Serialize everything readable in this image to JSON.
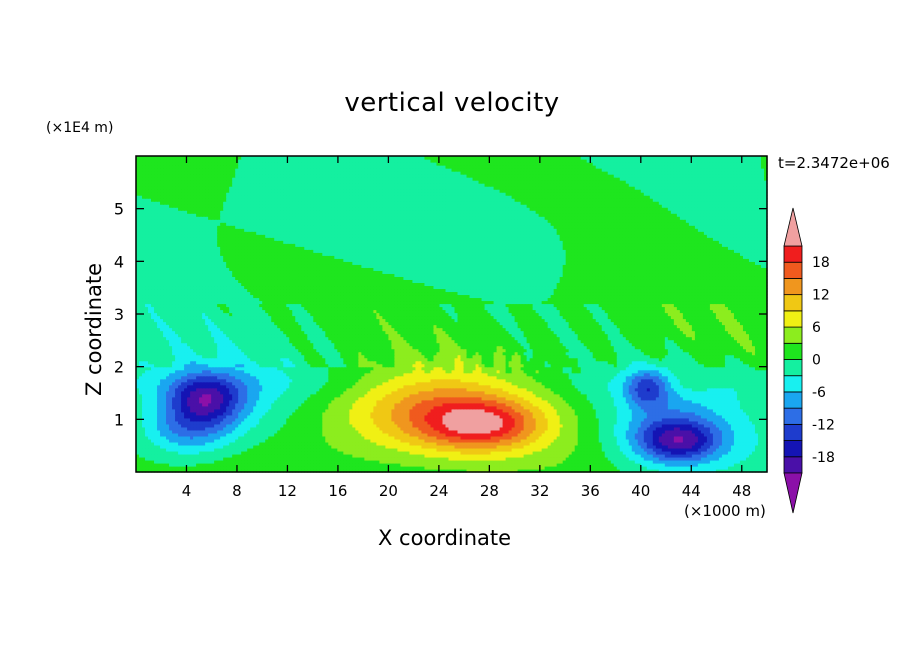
{
  "chart_data": {
    "type": "heatmap",
    "title": "vertical velocity",
    "xlabel": "X coordinate",
    "ylabel": "Z coordinate",
    "x_multiplier": "(×1000 m)",
    "y_multiplier": "(×1E4 m)",
    "time_label": "t=2.3472e+06",
    "xlim": [
      0,
      50
    ],
    "ylim": [
      0,
      6
    ],
    "xticks": [
      "4",
      "8",
      "12",
      "16",
      "20",
      "24",
      "28",
      "32",
      "36",
      "40",
      "44",
      "48"
    ],
    "yticks": [
      "1",
      "2",
      "3",
      "4",
      "5"
    ],
    "colorbar": {
      "levels": [
        -21,
        -18,
        -15,
        -12,
        -9,
        -6,
        -3,
        0,
        3,
        6,
        9,
        12,
        15,
        18,
        21
      ],
      "tick_labels": [
        "18",
        "12",
        "6",
        "0",
        "-6",
        "-12",
        "-18"
      ],
      "colors": [
        "#8b10a8",
        "#4a10a8",
        "#1414b4",
        "#1e3ccd",
        "#2d6ee6",
        "#1aa6f0",
        "#18f0f0",
        "#14f0a0",
        "#1ee61e",
        "#8ced1e",
        "#f0f014",
        "#f0c814",
        "#f0961e",
        "#f05a1e",
        "#f01e1e",
        "#f0a0a0"
      ],
      "extend": "both"
    },
    "features": [
      {
        "x": 27.5,
        "z": 0.9,
        "value": 12,
        "sx": 4.5,
        "sz": 0.45
      },
      {
        "x": 23.5,
        "z": 1.2,
        "value": 8,
        "sx": 7,
        "sz": 0.7
      },
      {
        "x": 25,
        "z": 1.0,
        "value": 6,
        "sx": 10,
        "sz": 0.95
      },
      {
        "x": 5.5,
        "z": 1.4,
        "value": -14,
        "sx": 2.8,
        "sz": 0.45
      },
      {
        "x": 4,
        "z": 0.8,
        "value": -8,
        "sx": 3.5,
        "sz": 0.5
      },
      {
        "x": 6,
        "z": 1.2,
        "value": -6,
        "sx": 5.5,
        "sz": 0.8
      },
      {
        "x": 43,
        "z": 0.6,
        "value": -15,
        "sx": 3.2,
        "sz": 0.4
      },
      {
        "x": 40.5,
        "z": 1.6,
        "value": -10,
        "sx": 1.6,
        "sz": 0.35
      },
      {
        "x": 42,
        "z": 0.9,
        "value": -6,
        "sx": 5,
        "sz": 0.8
      },
      {
        "x": 44,
        "z": 1.7,
        "value": 3,
        "sx": 2,
        "sz": 0.25
      }
    ]
  }
}
